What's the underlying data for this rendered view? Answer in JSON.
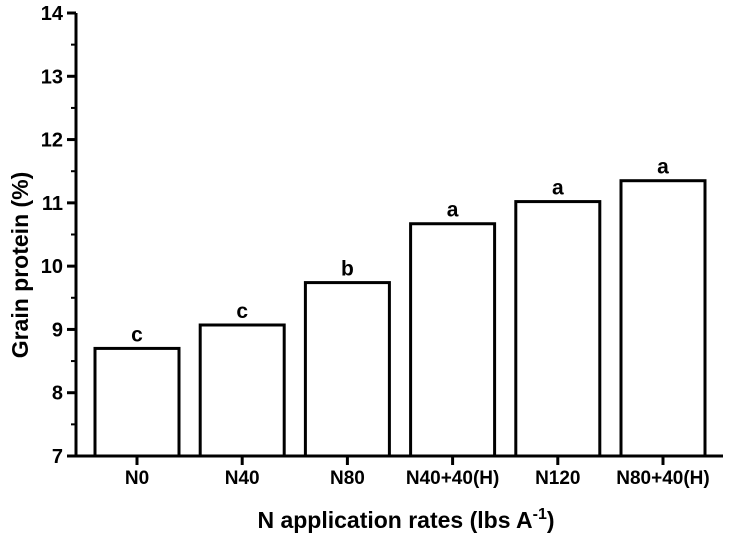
{
  "chart_data": {
    "type": "bar",
    "categories": [
      "N0",
      "N40",
      "N80",
      "N40+40(H)",
      "N120",
      "N80+40(H)"
    ],
    "values": [
      8.7,
      9.07,
      9.74,
      10.67,
      11.02,
      11.35
    ],
    "annotations": [
      "c",
      "c",
      "b",
      "a",
      "a",
      "a"
    ],
    "xlabel": "N application rates (lbs A",
    "xlabel_sup": "-1",
    "xlabel_end": ")",
    "ylabel": "Grain protein (%)",
    "ylim": [
      7,
      14
    ],
    "yticks": [
      7,
      8,
      9,
      10,
      11,
      12,
      13,
      14
    ],
    "bar_fill": "#ffffff",
    "bar_stroke": "#000000",
    "grid": false
  }
}
